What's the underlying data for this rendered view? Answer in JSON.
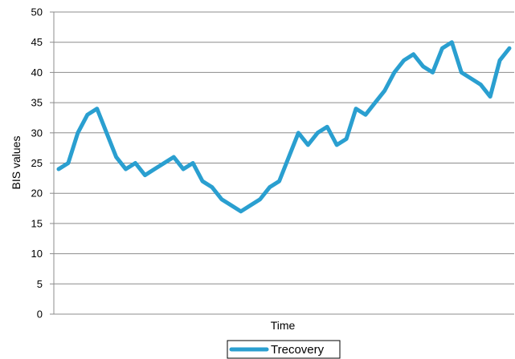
{
  "chart_data": {
    "type": "line",
    "title": "",
    "xlabel": "Time",
    "ylabel": "BIS values",
    "ylim": [
      0,
      50
    ],
    "yticks": [
      0,
      5,
      10,
      15,
      20,
      25,
      30,
      35,
      40,
      45,
      50
    ],
    "grid": "horizontal",
    "legend": "bottom",
    "series": [
      {
        "name": "Trecovery",
        "color": "#2a9fd0",
        "values": [
          24,
          25,
          30,
          33,
          34,
          30,
          26,
          24,
          25,
          23,
          24,
          25,
          26,
          24,
          25,
          22,
          21,
          19,
          18,
          17,
          18,
          19,
          21,
          22,
          26,
          30,
          28,
          30,
          31,
          28,
          29,
          34,
          33,
          35,
          37,
          40,
          42,
          43,
          41,
          40,
          44,
          45,
          40,
          39,
          38,
          36,
          42,
          44
        ]
      }
    ]
  }
}
